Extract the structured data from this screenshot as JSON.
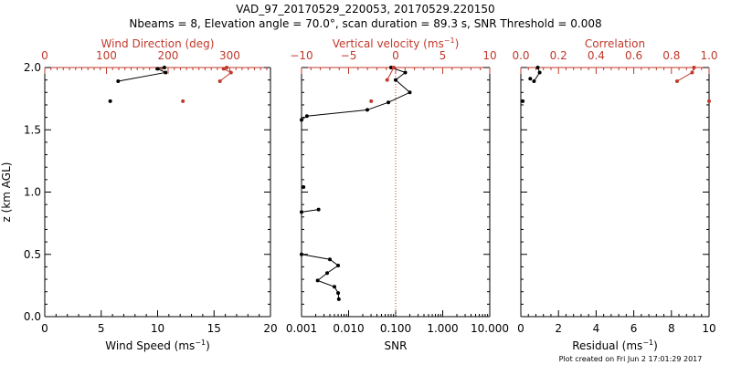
{
  "header": {
    "title_line1": "VAD_97_20170529_220053, 20170529.220150",
    "title_line2": "Nbeams = 8, Elevation angle = 70.0°, scan duration = 89.3 s, SNR Threshold = 0.008"
  },
  "footer": {
    "credit": "Plot created on Fri Jun  2 17:01:29 2017"
  },
  "colors": {
    "primary": "#000000",
    "secondary": "#c0392b"
  },
  "chart_data": [
    {
      "type": "scatter",
      "ylabel": "z (km AGL)",
      "ylim": [
        0,
        2
      ],
      "y_ticks": [
        "0.0",
        "0.5",
        "1.0",
        "1.5",
        "2.0"
      ],
      "bottom_axis": {
        "label_prefix": "Wind Speed (ms",
        "label_exp": "−1",
        "label_suffix": ")",
        "range": [
          0,
          20
        ],
        "ticks": [
          "0",
          "5",
          "10",
          "15",
          "20"
        ]
      },
      "top_axis": {
        "label": "Wind Direction (deg)",
        "range": [
          0,
          366
        ],
        "ticks": [
          0,
          100,
          200,
          300
        ]
      },
      "series": [
        {
          "axis": "bottom",
          "connected": true,
          "points": [
            [
              10.6,
              2.0
            ],
            [
              10.0,
              1.99
            ],
            [
              10.7,
              1.96
            ],
            [
              6.5,
              1.89
            ]
          ]
        },
        {
          "axis": "bottom",
          "connected": false,
          "points": [
            [
              5.8,
              1.73
            ]
          ]
        },
        {
          "axis": "top",
          "connected": true,
          "points": [
            [
              295,
              2.0
            ],
            [
              290,
              1.99
            ],
            [
              302,
              1.96
            ],
            [
              284,
              1.89
            ]
          ]
        },
        {
          "axis": "top",
          "connected": false,
          "points": [
            [
              224,
              1.73
            ]
          ]
        }
      ]
    },
    {
      "type": "line",
      "ylim": [
        0,
        2
      ],
      "bottom_axis": {
        "label": "SNR",
        "scale": "log",
        "range": [
          0.001,
          10
        ],
        "ticks": [
          "0.001",
          "0.010",
          "0.100",
          "1.000",
          "10.000"
        ]
      },
      "top_axis": {
        "label_prefix": "Vertical velocity (ms",
        "label_exp": "−1",
        "label_suffix": ")",
        "range": [
          -10,
          10
        ],
        "ticks": [
          "−10",
          "−5",
          "0",
          "5",
          "10"
        ]
      },
      "reference_line": {
        "axis": "top",
        "value": 0,
        "style": "dotted"
      },
      "series": [
        {
          "axis": "bottom",
          "connected": true,
          "points": [
            [
              0.08,
              2.0
            ],
            [
              0.16,
              1.96
            ],
            [
              0.1,
              1.9
            ],
            [
              0.2,
              1.8
            ],
            [
              0.07,
              1.72
            ],
            [
              0.025,
              1.66
            ],
            [
              0.0013,
              1.61
            ],
            [
              0.001,
              1.58
            ]
          ]
        },
        {
          "axis": "bottom",
          "connected": false,
          "points": [
            [
              0.0011,
              1.04
            ]
          ]
        },
        {
          "axis": "bottom",
          "connected": true,
          "points": [
            [
              0.001,
              0.84
            ],
            [
              0.0023,
              0.86
            ]
          ]
        },
        {
          "axis": "bottom",
          "connected": true,
          "points": [
            [
              0.001,
              0.5
            ],
            [
              0.004,
              0.46
            ],
            [
              0.006,
              0.41
            ],
            [
              0.0035,
              0.35
            ],
            [
              0.0022,
              0.29
            ],
            [
              0.005,
              0.24
            ],
            [
              0.006,
              0.19
            ],
            [
              0.0062,
              0.14
            ]
          ]
        },
        {
          "axis": "top",
          "connected": true,
          "points": [
            [
              -0.2,
              2.0
            ],
            [
              -0.9,
              1.9
            ]
          ]
        },
        {
          "axis": "top",
          "connected": false,
          "points": [
            [
              -2.6,
              1.73
            ]
          ]
        }
      ]
    },
    {
      "type": "scatter",
      "ylim": [
        0,
        2
      ],
      "bottom_axis": {
        "label_prefix": "Residual (ms",
        "label_exp": "−1",
        "label_suffix": ")",
        "range": [
          0,
          10
        ],
        "ticks": [
          "0",
          "2",
          "4",
          "6",
          "8",
          "10"
        ]
      },
      "top_axis": {
        "label": "Correlation",
        "range": [
          0,
          1
        ],
        "ticks": [
          "0.0",
          "0.2",
          "0.4",
          "0.6",
          "0.8",
          "1.0"
        ]
      },
      "series": [
        {
          "axis": "bottom",
          "connected": true,
          "points": [
            [
              0.9,
              2.0
            ],
            [
              1.0,
              1.96
            ],
            [
              0.7,
              1.89
            ]
          ]
        },
        {
          "axis": "bottom",
          "connected": false,
          "points": [
            [
              0.5,
              1.91
            ]
          ]
        },
        {
          "axis": "bottom",
          "connected": false,
          "points": [
            [
              0.1,
              1.73
            ]
          ]
        },
        {
          "axis": "top",
          "connected": true,
          "points": [
            [
              0.92,
              2.0
            ],
            [
              0.91,
              1.96
            ],
            [
              0.83,
              1.89
            ]
          ]
        },
        {
          "axis": "top",
          "connected": false,
          "points": [
            [
              1.0,
              1.73
            ]
          ]
        }
      ]
    }
  ]
}
